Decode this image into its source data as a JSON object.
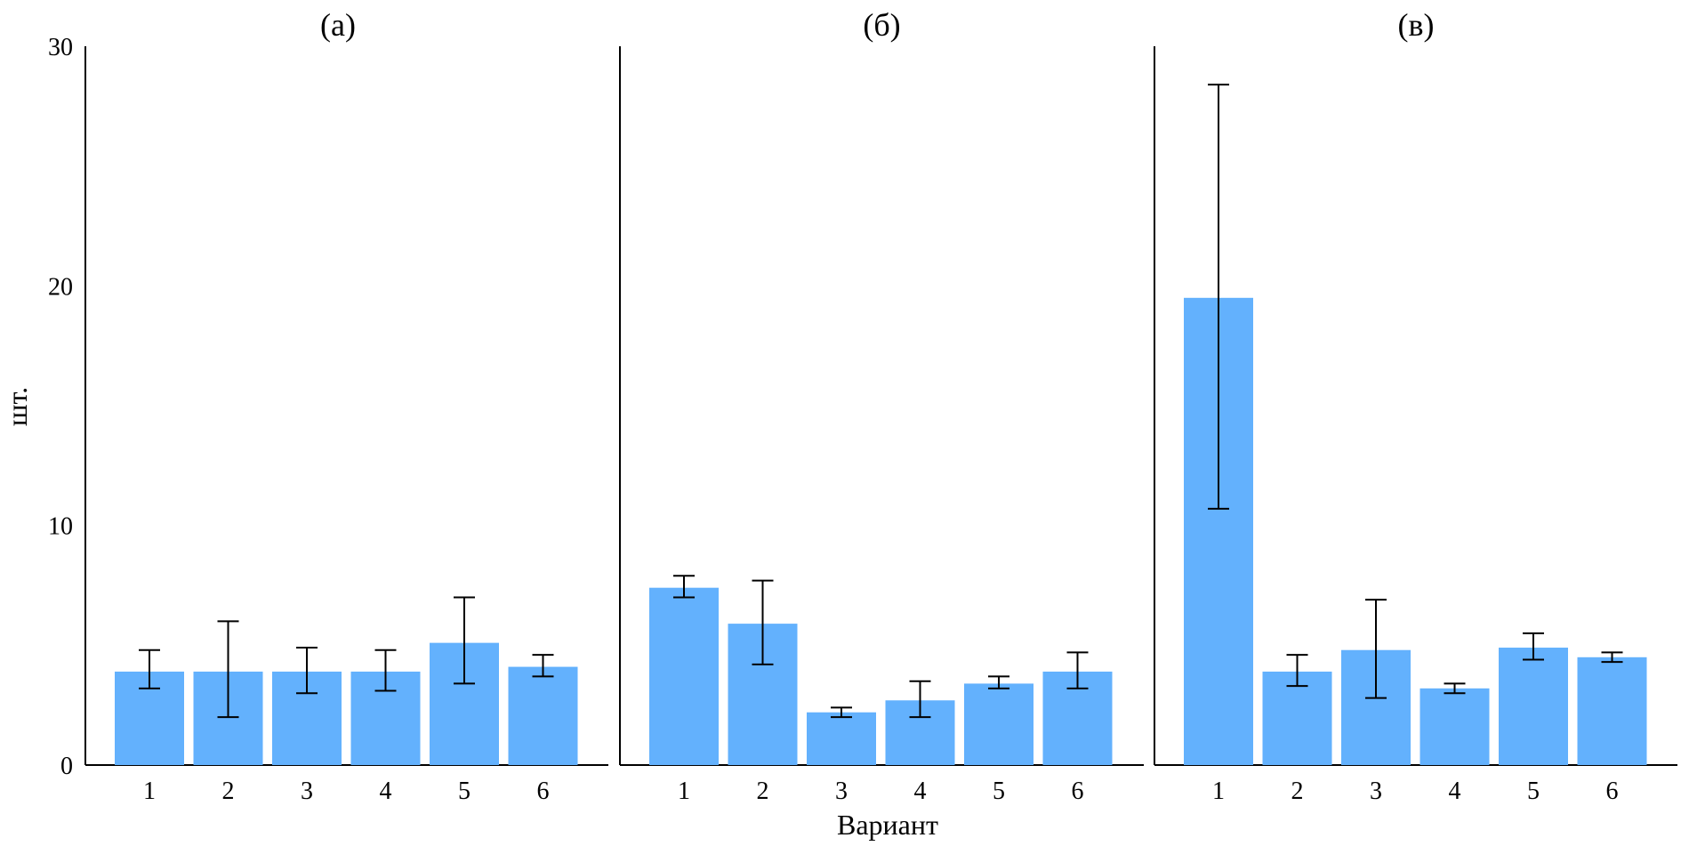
{
  "chart_data": {
    "type": "bar",
    "ylabel": "шт.",
    "xlabel": "Вариант",
    "ylim": [
      0,
      30
    ],
    "yticks": [
      "0",
      "10",
      "20",
      "30"
    ],
    "bar_color": "#63b1fd",
    "error_bar_color": "#000000",
    "panels": [
      {
        "title": "(а)",
        "categories": [
          "1",
          "2",
          "3",
          "4",
          "5",
          "6"
        ],
        "values": [
          3.9,
          3.9,
          3.9,
          3.9,
          5.1,
          4.1
        ],
        "error_low": [
          3.2,
          2.0,
          3.0,
          3.1,
          3.4,
          3.7
        ],
        "error_high": [
          4.8,
          6.0,
          4.9,
          4.8,
          7.0,
          4.6
        ]
      },
      {
        "title": "(б)",
        "categories": [
          "1",
          "2",
          "3",
          "4",
          "5",
          "6"
        ],
        "values": [
          7.4,
          5.9,
          2.2,
          2.7,
          3.4,
          3.9
        ],
        "error_low": [
          7.0,
          4.2,
          2.0,
          2.0,
          3.2,
          3.2
        ],
        "error_high": [
          7.9,
          7.7,
          2.4,
          3.5,
          3.7,
          4.7
        ]
      },
      {
        "title": "(в)",
        "categories": [
          "1",
          "2",
          "3",
          "4",
          "5",
          "6"
        ],
        "values": [
          19.5,
          3.9,
          4.8,
          3.2,
          4.9,
          4.5
        ],
        "error_low": [
          10.7,
          3.3,
          2.8,
          3.0,
          4.4,
          4.3
        ],
        "error_high": [
          28.4,
          4.6,
          6.9,
          3.4,
          5.5,
          4.7
        ]
      }
    ]
  }
}
